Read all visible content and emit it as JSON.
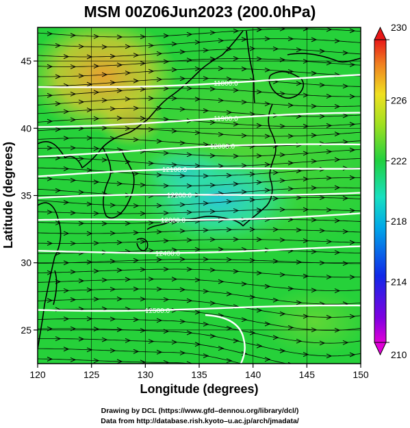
{
  "title": "MSM 00Z06Jun2023 (200.0hPa)",
  "xlabel": "Longitude (degrees)",
  "ylabel": "Latitude  (degrees)",
  "xticks": [
    "120",
    "125",
    "130",
    "135",
    "140",
    "145",
    "150"
  ],
  "yticks": [
    "25",
    "30",
    "35",
    "40",
    "45"
  ],
  "colorbar": {
    "ticks": [
      "230",
      "226",
      "222",
      "218",
      "214",
      "210"
    ],
    "range": [
      210,
      230
    ]
  },
  "contours": [
    {
      "label": "11800.0"
    },
    {
      "label": "11900.0"
    },
    {
      "label": "12000.0"
    },
    {
      "label": "12100.0"
    },
    {
      "label": "12200.0"
    },
    {
      "label": "12300.0"
    },
    {
      "label": "12400.0"
    },
    {
      "label": "12500.0"
    }
  ],
  "credits": {
    "line1": "Drawing by DCL (https://www.gfd–dennou.org/library/dcl/)",
    "line2": "Data from http://database.rish.kyoto–u.ac.jp/arch/jmadata/"
  },
  "map": {
    "lon_range": [
      120,
      150
    ],
    "lat_range": [
      22.5,
      47.5
    ]
  },
  "colors": {
    "background": "#26d13a",
    "warm_region": "#f0a030",
    "cool_region": "#2ad8c0",
    "contour": "#ffffff",
    "streamline": "#000000"
  }
}
